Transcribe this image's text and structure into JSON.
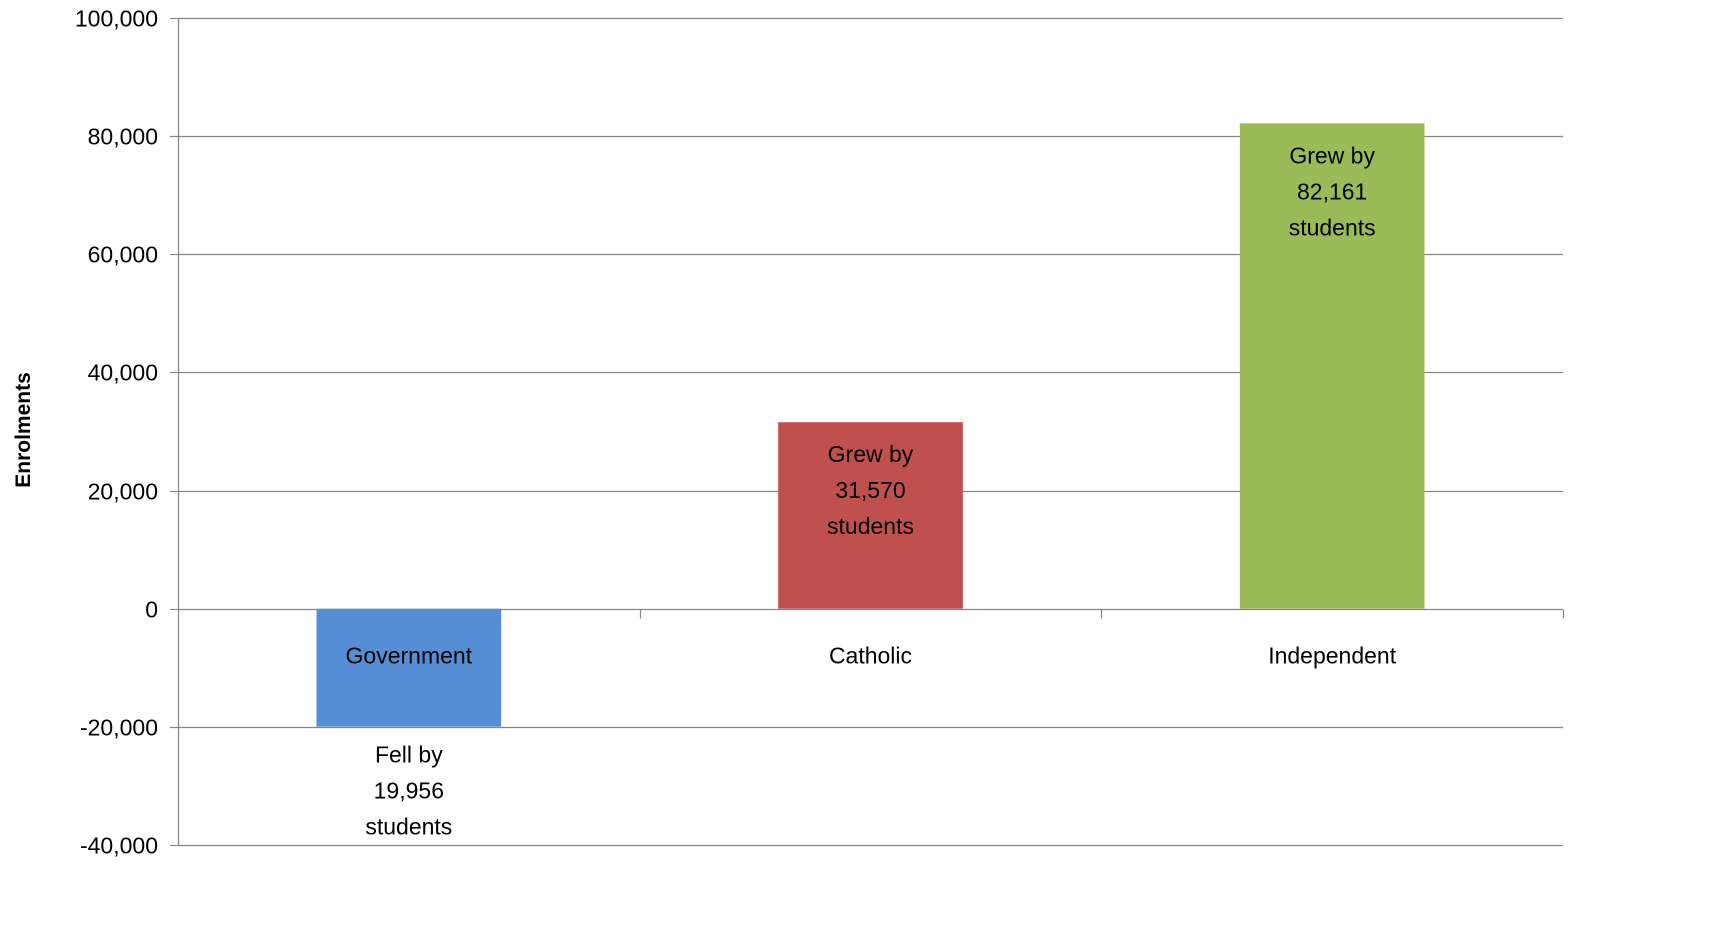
{
  "chart_data": {
    "type": "bar",
    "categories": [
      "Government",
      "Catholic",
      "Independent"
    ],
    "values": [
      -19956,
      31570,
      82161
    ],
    "data_labels": [
      [
        "Fell by",
        "19,956",
        "students"
      ],
      [
        "Grew by",
        "31,570",
        "students"
      ],
      [
        "Grew by",
        "82,161",
        "students"
      ]
    ],
    "colors": [
      "#558ED5",
      "#C0504D",
      "#9BBB59"
    ],
    "title": "",
    "xlabel": "",
    "ylabel": "Enrolments",
    "ylim": [
      -40000,
      100000
    ],
    "yticks": [
      -40000,
      -20000,
      0,
      20000,
      40000,
      60000,
      80000,
      100000
    ],
    "ytick_labels": [
      "-40,000",
      "-20,000",
      "0",
      "20,000",
      "40,000",
      "60,000",
      "80,000",
      "100,000"
    ],
    "grid": true,
    "legend": "none"
  }
}
